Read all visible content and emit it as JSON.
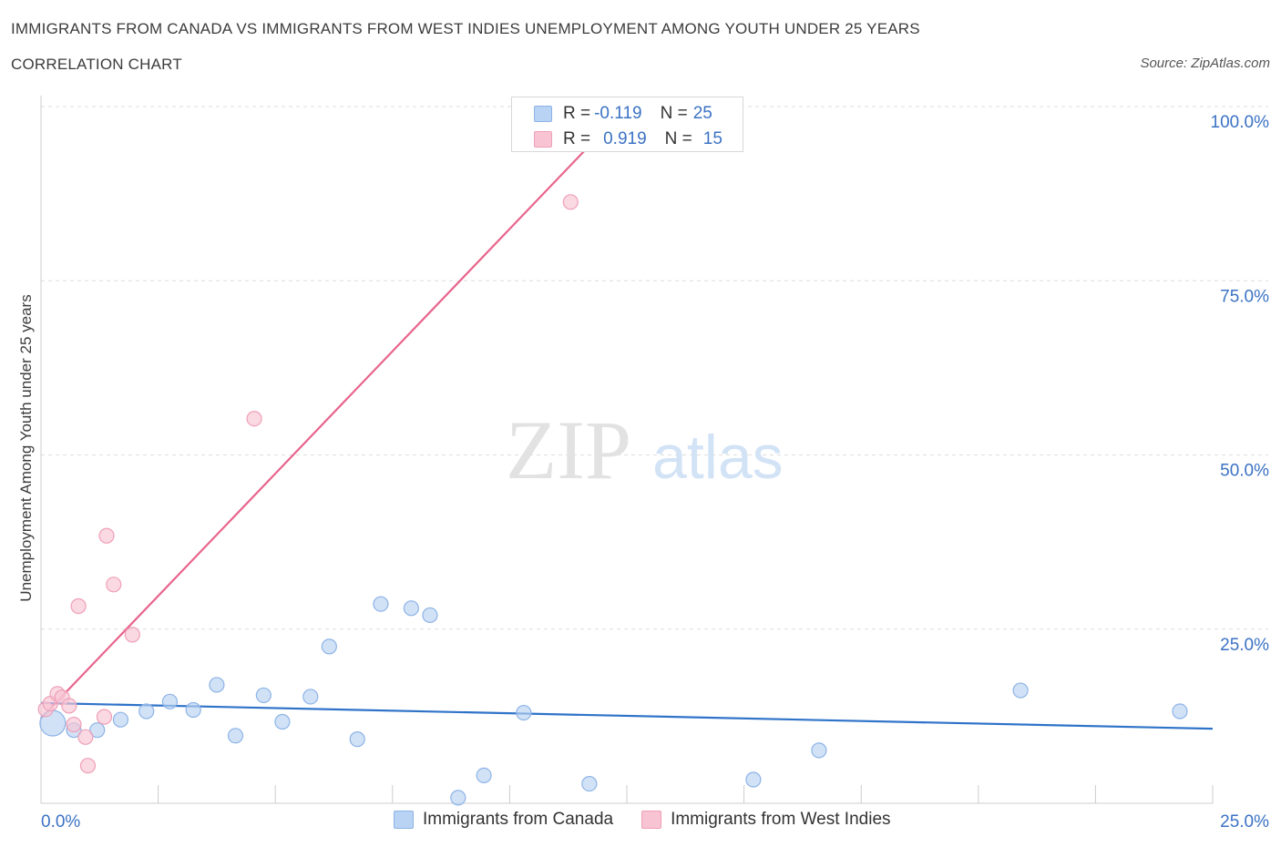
{
  "title": "IMMIGRANTS FROM CANADA VS IMMIGRANTS FROM WEST INDIES UNEMPLOYMENT AMONG YOUTH UNDER 25 YEARS",
  "subtitle": "CORRELATION CHART",
  "source": "Source: ZipAtlas.com",
  "watermark": {
    "zip": "ZIP",
    "atlas": "atlas"
  },
  "colors": {
    "canada_fill": "#b8d3f3",
    "canada_stroke": "#8db3e6",
    "canada_line": "#2f73c9",
    "westindies_fill": "#f8c4d4",
    "westindies_stroke": "#ef9fb8",
    "westindies_line": "#e8648c",
    "tick_label": "#3b72c4",
    "grid": "#dddddd"
  },
  "legend": {
    "rows": [
      {
        "r_label": "R =",
        "r_value": "-0.119",
        "n_label": "N =",
        "n_value": "25"
      },
      {
        "r_label": "R =",
        "r_value": "0.919",
        "n_label": "N =",
        "n_value": "15"
      }
    ]
  },
  "bottom_legend": [
    "Immigrants from Canada",
    "Immigrants from West Indies"
  ],
  "chart_data": {
    "type": "scatter",
    "title": "IMMIGRANTS FROM CANADA VS IMMIGRANTS FROM WEST INDIES UNEMPLOYMENT AMONG YOUTH UNDER 25 YEARS",
    "xlabel": "",
    "ylabel": "Unemployment Among Youth under 25 years",
    "xlim": [
      0,
      25
    ],
    "ylim": [
      0,
      100
    ],
    "x_tick_labels": [
      "0.0%",
      "25.0%"
    ],
    "y_ticks": [
      25,
      50,
      75,
      100
    ],
    "y_tick_labels": [
      "25.0%",
      "50.0%",
      "75.0%",
      "100.0%"
    ],
    "grid": true,
    "series": [
      {
        "name": "Immigrants from Canada",
        "R": -0.119,
        "N": 25,
        "points": [
          {
            "x": 0.25,
            "y": 11.5,
            "size": "large"
          },
          {
            "x": 0.7,
            "y": 10.5
          },
          {
            "x": 1.2,
            "y": 10.5
          },
          {
            "x": 1.7,
            "y": 12.0
          },
          {
            "x": 2.25,
            "y": 13.2
          },
          {
            "x": 2.75,
            "y": 14.6
          },
          {
            "x": 3.25,
            "y": 13.4
          },
          {
            "x": 3.75,
            "y": 17.0
          },
          {
            "x": 4.15,
            "y": 9.7
          },
          {
            "x": 4.75,
            "y": 15.5
          },
          {
            "x": 5.15,
            "y": 11.7
          },
          {
            "x": 5.75,
            "y": 15.3
          },
          {
            "x": 6.15,
            "y": 22.5
          },
          {
            "x": 6.75,
            "y": 9.2
          },
          {
            "x": 7.25,
            "y": 28.6
          },
          {
            "x": 7.9,
            "y": 28.0
          },
          {
            "x": 8.3,
            "y": 27.0
          },
          {
            "x": 8.9,
            "y": 0.8
          },
          {
            "x": 9.45,
            "y": 4.0
          },
          {
            "x": 10.3,
            "y": 13.0
          },
          {
            "x": 11.7,
            "y": 2.8
          },
          {
            "x": 15.2,
            "y": 3.4
          },
          {
            "x": 16.6,
            "y": 7.6
          },
          {
            "x": 20.9,
            "y": 16.2
          },
          {
            "x": 24.3,
            "y": 13.2
          }
        ],
        "trend": {
          "x0": 0,
          "y0": 14.4,
          "x1": 25,
          "y1": 10.7
        }
      },
      {
        "name": "Immigrants from West Indies",
        "R": 0.919,
        "N": 15,
        "points": [
          {
            "x": 0.1,
            "y": 13.5
          },
          {
            "x": 0.2,
            "y": 14.3
          },
          {
            "x": 0.35,
            "y": 15.7
          },
          {
            "x": 0.45,
            "y": 15.2
          },
          {
            "x": 0.6,
            "y": 14.0
          },
          {
            "x": 0.7,
            "y": 11.3
          },
          {
            "x": 0.8,
            "y": 28.3
          },
          {
            "x": 0.95,
            "y": 9.5
          },
          {
            "x": 1.0,
            "y": 5.4
          },
          {
            "x": 1.35,
            "y": 12.4
          },
          {
            "x": 1.4,
            "y": 38.4
          },
          {
            "x": 1.55,
            "y": 31.4
          },
          {
            "x": 1.95,
            "y": 24.2
          },
          {
            "x": 4.55,
            "y": 55.2
          },
          {
            "x": 11.3,
            "y": 86.3
          }
        ],
        "trend": {
          "x0": 0,
          "y0": 12.2,
          "x1": 12.5,
          "y1": 100
        }
      }
    ]
  }
}
